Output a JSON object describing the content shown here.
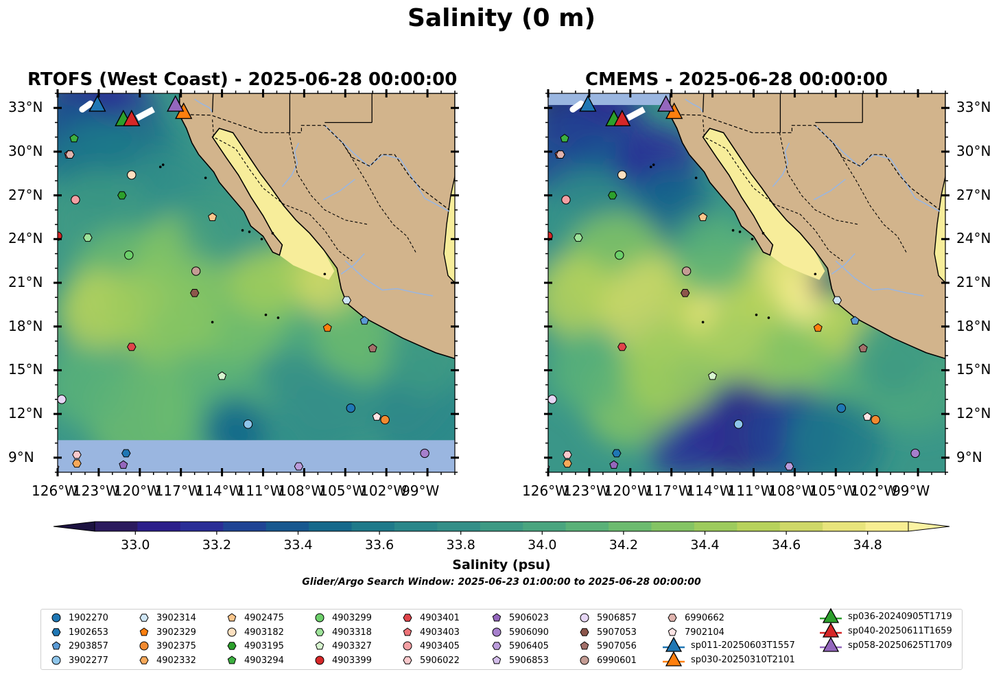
{
  "figure": {
    "title": "Salinity (0 m)",
    "window_text": "Glider/Argo Search Window: 2025-06-23 01:00:00 to 2025-06-28 00:00:00"
  },
  "panels": [
    {
      "title": "RTOFS (West Coast) - 2025-06-28 00:00:00"
    },
    {
      "title": "CMEMS - 2025-06-28 00:00:00"
    }
  ],
  "axes": {
    "x_ticks": [
      "126°W",
      "123°W",
      "120°W",
      "117°W",
      "114°W",
      "111°W",
      "108°W",
      "105°W",
      "102°W",
      "99°W"
    ],
    "y_ticks": [
      "33°N",
      "30°N",
      "27°N",
      "24°N",
      "21°N",
      "18°N",
      "15°N",
      "12°N",
      "9°N"
    ],
    "lon_range": [
      -126,
      -97
    ],
    "lat_range": [
      8,
      34
    ]
  },
  "colorbar": {
    "label": "Salinity (psu)",
    "ticks": [
      "33.0",
      "33.2",
      "33.4",
      "33.6",
      "33.8",
      "34.0",
      "34.2",
      "34.4",
      "34.6",
      "34.8"
    ],
    "range": [
      32.9,
      34.9
    ],
    "colors": [
      "#2b1a5e",
      "#2c1f8a",
      "#2a2e96",
      "#1f4494",
      "#17588f",
      "#16698b",
      "#1f7a8a",
      "#2a878a",
      "#348f88",
      "#3e9a84",
      "#4aa57f",
      "#5ab178",
      "#6cbb6f",
      "#84c464",
      "#9dcb5d",
      "#b7d25c",
      "#cfd868",
      "#e8e47c",
      "#f8ee92"
    ],
    "over_color": "#fbf3a3",
    "under_color": "#1c1240"
  },
  "map_colors": {
    "land": "#d2b48c",
    "nodata": "#9ab6e0",
    "gulf_fresh": "#f7ed9a"
  },
  "argo_floats": [
    {
      "id": "1902270",
      "marker": "circle",
      "color": "#1f77b4"
    },
    {
      "id": "1902653",
      "marker": "hexagon",
      "color": "#1f77b4"
    },
    {
      "id": "2903857",
      "marker": "pentagon",
      "color": "#5b9bd5"
    },
    {
      "id": "3902277",
      "marker": "circle",
      "color": "#8ec5ea"
    },
    {
      "id": "3902314",
      "marker": "hexagon",
      "color": "#cfe6f6"
    },
    {
      "id": "3902329",
      "marker": "pentagon",
      "color": "#ff7f0e"
    },
    {
      "id": "3902375",
      "marker": "circle",
      "color": "#f28a30"
    },
    {
      "id": "4902332",
      "marker": "hexagon",
      "color": "#f7a95a"
    },
    {
      "id": "4902475",
      "marker": "pentagon",
      "color": "#fcc68c"
    },
    {
      "id": "4903182",
      "marker": "circle",
      "color": "#fde0c0"
    },
    {
      "id": "4903195",
      "marker": "hexagon",
      "color": "#2ca02c"
    },
    {
      "id": "4903294",
      "marker": "pentagon",
      "color": "#3cb040"
    },
    {
      "id": "4903299",
      "marker": "circle",
      "color": "#6ccf6a"
    },
    {
      "id": "4903318",
      "marker": "hexagon",
      "color": "#9ee39a"
    },
    {
      "id": "4903327",
      "marker": "pentagon",
      "color": "#d7f5cf"
    },
    {
      "id": "4903399",
      "marker": "circle",
      "color": "#d62728"
    },
    {
      "id": "4903401",
      "marker": "hexagon",
      "color": "#e0444a"
    },
    {
      "id": "4903403",
      "marker": "pentagon",
      "color": "#ee7378"
    },
    {
      "id": "4903405",
      "marker": "circle",
      "color": "#f4a0a4"
    },
    {
      "id": "5906022",
      "marker": "hexagon",
      "color": "#fac9cc"
    },
    {
      "id": "5906023",
      "marker": "pentagon",
      "color": "#9467bd"
    },
    {
      "id": "5906090",
      "marker": "circle",
      "color": "#a67fcc"
    },
    {
      "id": "5906405",
      "marker": "hexagon",
      "color": "#bb9cdb"
    },
    {
      "id": "5906853",
      "marker": "pentagon",
      "color": "#d3bdea"
    },
    {
      "id": "5906857",
      "marker": "circle",
      "color": "#e6d6f5"
    },
    {
      "id": "5907053",
      "marker": "hexagon",
      "color": "#8c564b"
    },
    {
      "id": "5907056",
      "marker": "pentagon",
      "color": "#a3706a"
    },
    {
      "id": "6990601",
      "marker": "circle",
      "color": "#c49c94"
    },
    {
      "id": "6990662",
      "marker": "hexagon",
      "color": "#e0b4ae"
    },
    {
      "id": "7902104",
      "marker": "pentagon",
      "color": "#fde4e4"
    }
  ],
  "gliders": [
    {
      "id": "sp011-20250603T1557",
      "color": "#1f77b4"
    },
    {
      "id": "sp030-20250310T2101",
      "color": "#ff7f0e"
    },
    {
      "id": "sp036-20240905T1719",
      "color": "#2ca02c"
    },
    {
      "id": "sp040-20250611T1659",
      "color": "#d62728"
    },
    {
      "id": "sp058-20250625T1709",
      "color": "#9467bd"
    }
  ],
  "float_positions": [
    {
      "id": "1902270",
      "lon": -104.6,
      "lat": 12.4
    },
    {
      "id": "1902653",
      "lon": -121.0,
      "lat": 9.3
    },
    {
      "id": "2903857",
      "lon": -103.6,
      "lat": 18.4
    },
    {
      "id": "3902277",
      "lon": -112.1,
      "lat": 11.3
    },
    {
      "id": "3902314",
      "lon": -104.9,
      "lat": 19.8
    },
    {
      "id": "3902329",
      "lon": -106.3,
      "lat": 17.9
    },
    {
      "id": "3902375",
      "lon": -102.1,
      "lat": 11.6
    },
    {
      "id": "4902332",
      "lon": -124.6,
      "lat": 8.6
    },
    {
      "id": "4902475",
      "lon": -114.7,
      "lat": 25.5
    },
    {
      "id": "4903182",
      "lon": -120.6,
      "lat": 28.4
    },
    {
      "id": "4903195",
      "lon": -121.3,
      "lat": 27.0
    },
    {
      "id": "4903294",
      "lon": -124.8,
      "lat": 30.9
    },
    {
      "id": "4903299",
      "lon": -120.8,
      "lat": 22.9
    },
    {
      "id": "4903318",
      "lon": -123.8,
      "lat": 24.1
    },
    {
      "id": "4903327",
      "lon": -114.0,
      "lat": 14.6
    },
    {
      "id": "4903399",
      "lon": -126.0,
      "lat": 24.2
    },
    {
      "id": "4903401",
      "lon": -120.6,
      "lat": 16.6
    },
    {
      "id": "4903403",
      "lon": -125.2,
      "lat": 29.8
    },
    {
      "id": "4903405",
      "lon": -124.7,
      "lat": 26.7
    },
    {
      "id": "5906022",
      "lon": -124.6,
      "lat": 9.2
    },
    {
      "id": "5906023",
      "lon": -121.2,
      "lat": 8.5
    },
    {
      "id": "5906090",
      "lon": -99.2,
      "lat": 9.3
    },
    {
      "id": "5906405",
      "lon": -108.4,
      "lat": 8.4
    },
    {
      "id": "5906853",
      "lon": -126.2,
      "lat": 8.3
    },
    {
      "id": "5906857",
      "lon": -125.7,
      "lat": 13.0
    },
    {
      "id": "5907053",
      "lon": -116.0,
      "lat": 20.3
    },
    {
      "id": "5907056",
      "lon": -103.0,
      "lat": 16.5
    },
    {
      "id": "6990601",
      "lon": -115.9,
      "lat": 21.8
    },
    {
      "id": "6990662",
      "lon": -125.1,
      "lat": 29.8
    },
    {
      "id": "7902104",
      "lon": -102.7,
      "lat": 11.8
    }
  ],
  "glider_positions": [
    {
      "id": "sp011-20250603T1557",
      "lon": -123.1,
      "lat": 33.2
    },
    {
      "id": "sp030-20250310T2101",
      "lon": -116.8,
      "lat": 32.7
    },
    {
      "id": "sp036-20240905T1719",
      "lon": -121.2,
      "lat": 32.2
    },
    {
      "id": "sp040-20250611T1659",
      "lon": -120.6,
      "lat": 32.2
    },
    {
      "id": "sp058-20250625T1709",
      "lon": -117.4,
      "lat": 33.2
    }
  ]
}
